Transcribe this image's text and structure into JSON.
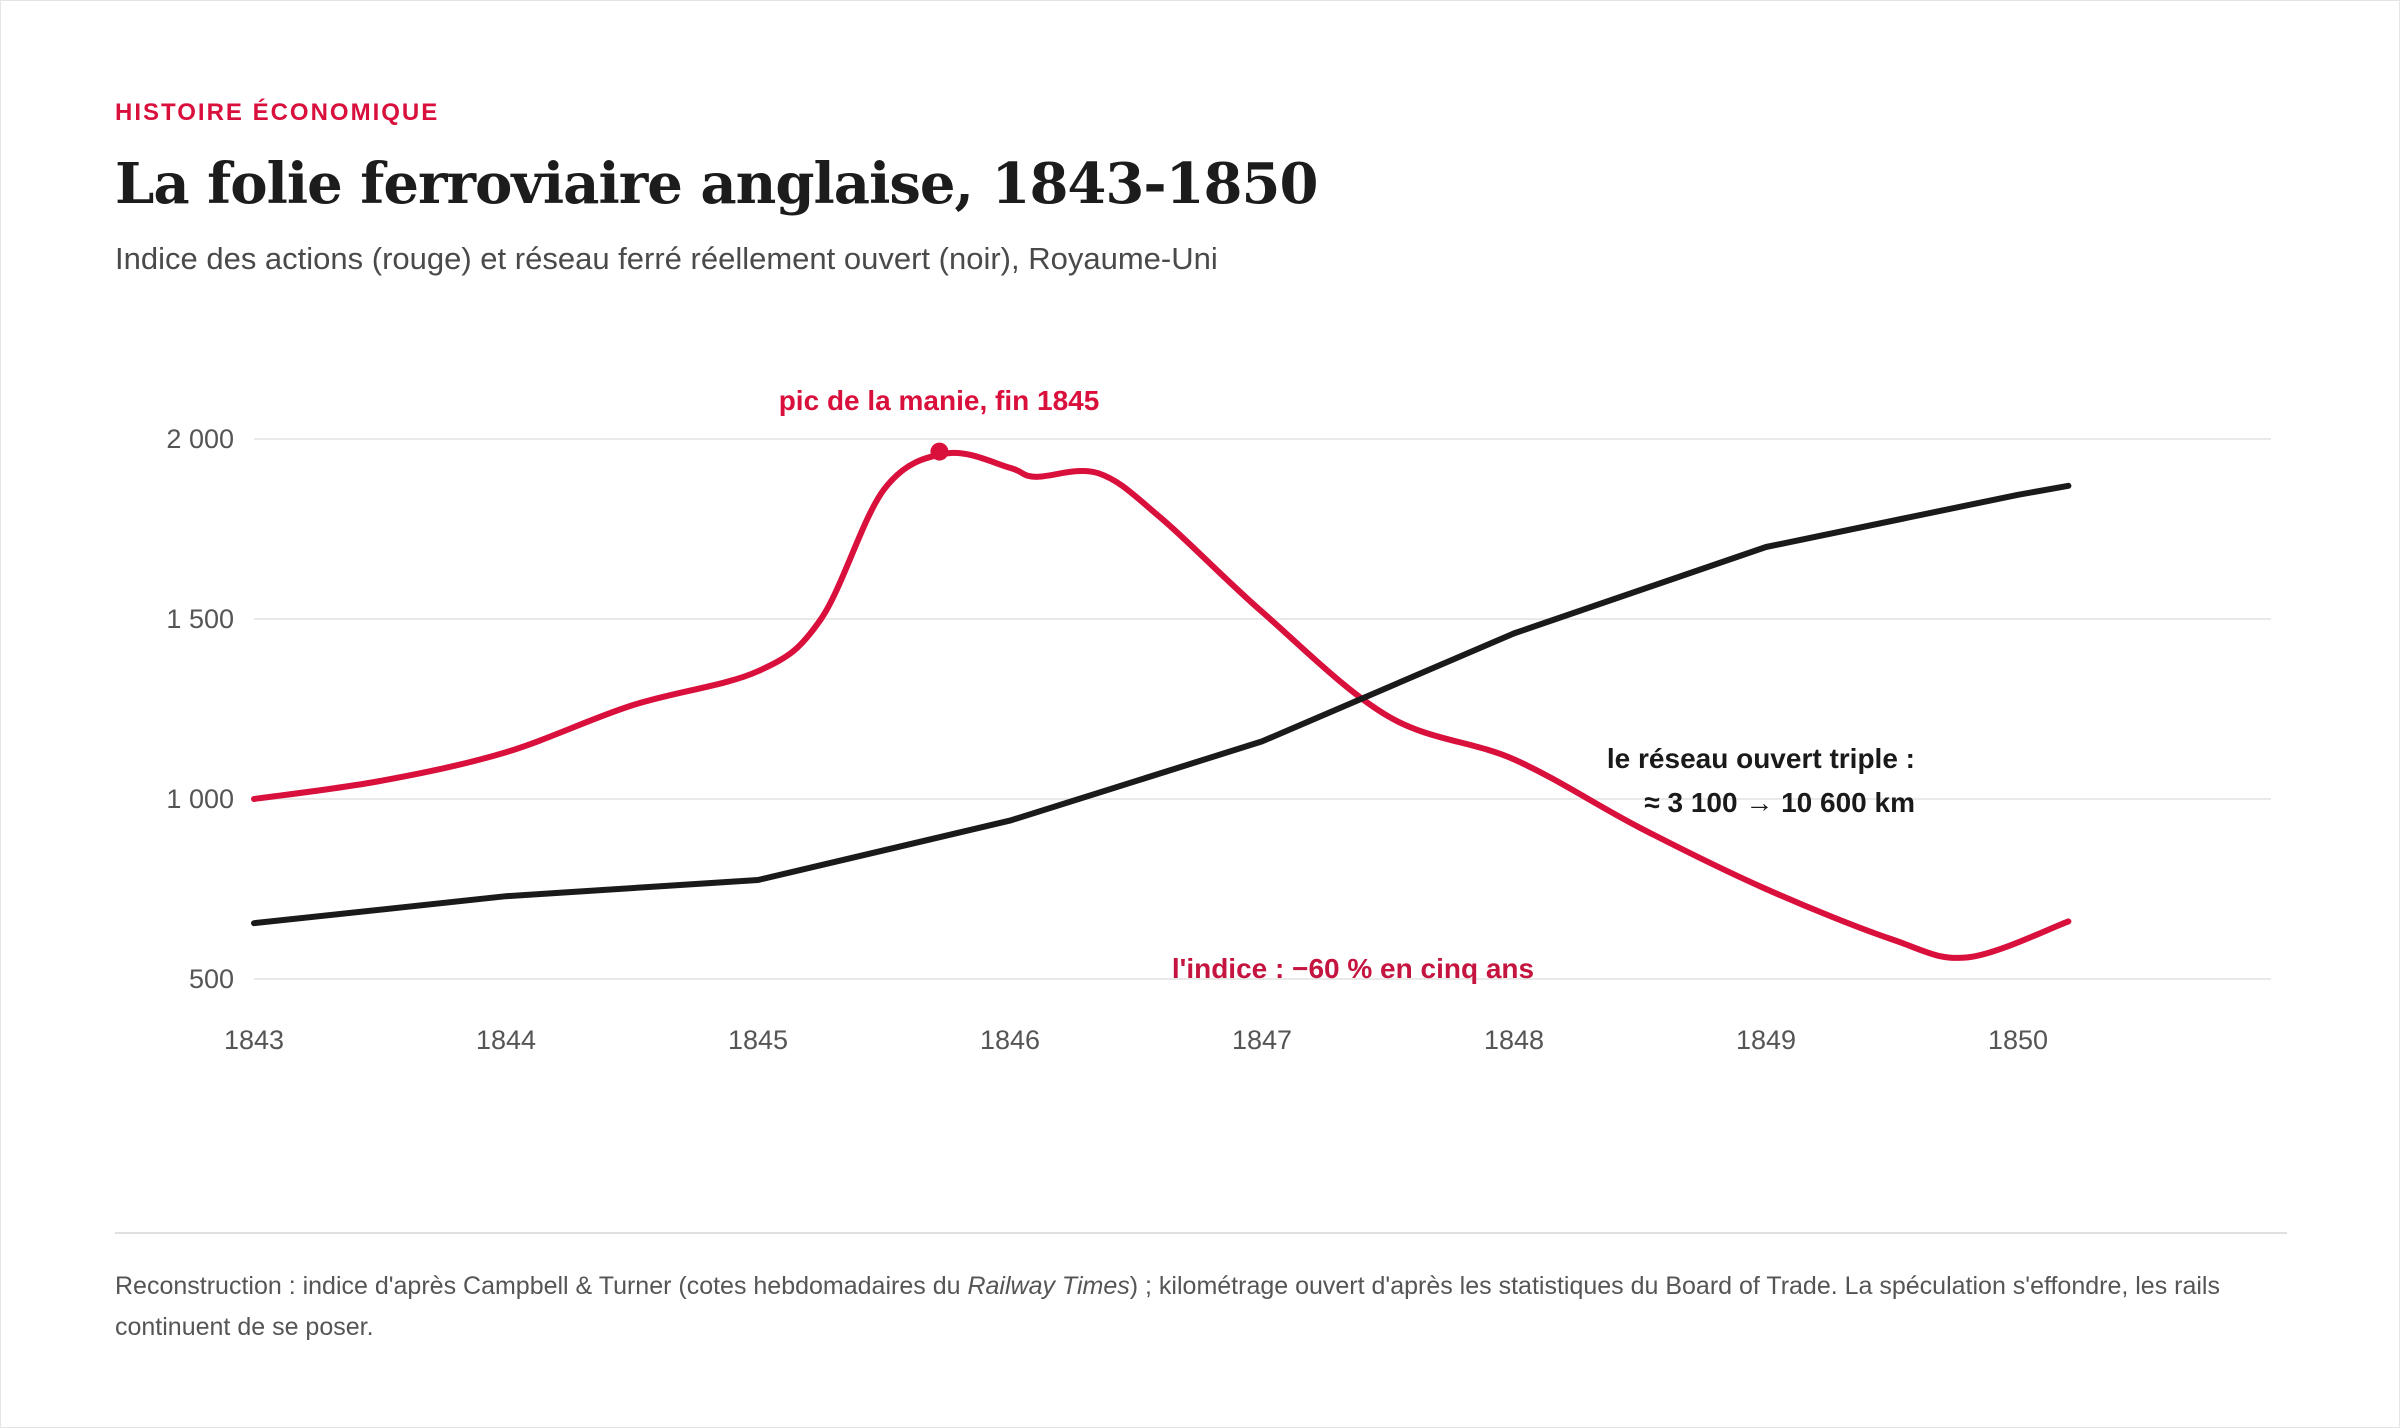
{
  "header": {
    "kicker": "HISTOIRE ÉCONOMIQUE",
    "title": "La folie ferroviaire anglaise, 1843-1850",
    "subtitle": "Indice des actions (rouge) et réseau ferré réellement ouvert (noir), Royaume-Uni"
  },
  "footnote": {
    "part1": "Reconstruction : indice d'après Campbell & Turner (cotes hebdomadaires du ",
    "italic": "Railway Times",
    "part2": ") ; kilométrage ouvert d'après les statistiques du Board of Trade. La spéculation s'effondre, les rails continuent de se poser."
  },
  "colors": {
    "accent": "#d90f3c",
    "network": "#1a1a1a",
    "grid": "#e2e2e2"
  },
  "chart_data": {
    "type": "line",
    "title": "La folie ferroviaire anglaise, 1843-1850",
    "xlim": [
      1843,
      1851
    ],
    "ylim": [
      500,
      2000
    ],
    "y_ticks": [
      2000,
      1500,
      1000,
      500
    ],
    "y_tick_labels": [
      "2 000",
      "1 500",
      "1 000",
      "500"
    ],
    "x_ticks": [
      1843,
      1844,
      1845,
      1846,
      1847,
      1848,
      1849,
      1850
    ],
    "x_tick_labels": [
      "1843",
      "1844",
      "1845",
      "1846",
      "1847",
      "1848",
      "1849",
      "1850"
    ],
    "grid": true,
    "series": [
      {
        "color": "#d90f3c",
        "x": [
          1843.0,
          1843.5,
          1844.0,
          1844.5,
          1845.0,
          1845.25,
          1845.5,
          1845.75,
          1846.0,
          1846.1,
          1846.35,
          1846.6,
          1847.0,
          1847.5,
          1848.0,
          1848.5,
          1849.0,
          1849.5,
          1849.8,
          1850.2
        ],
        "values": [
          1000,
          1050,
          1130,
          1260,
          1355,
          1500,
          1860,
          1960,
          1920,
          1895,
          1905,
          1780,
          1520,
          1230,
          1110,
          920,
          750,
          610,
          560,
          660
        ]
      },
      {
        "color": "#1a1a1a",
        "x": [
          1843.0,
          1844.0,
          1845.0,
          1846.0,
          1847.0,
          1848.0,
          1849.0,
          1850.0,
          1850.2
        ],
        "values": [
          655,
          730,
          775,
          940,
          1160,
          1460,
          1700,
          1845,
          1870
        ]
      }
    ],
    "peak_marker": {
      "x": 1845.72,
      "y": 1965
    },
    "annotations": {
      "peak": "pic de la manie, fin 1845",
      "network_line1": "le réseau ouvert triple :",
      "network_line2": "≈ 3 100 → 10 600 km",
      "index_drop": "l'indice : −60 % en cinq ans"
    }
  }
}
